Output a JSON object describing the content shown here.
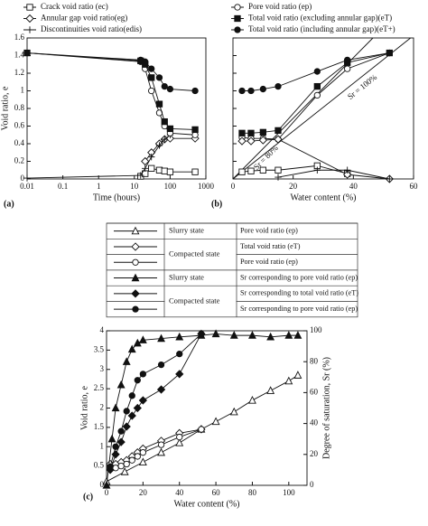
{
  "chart_data": [
    {
      "type": "line",
      "panel_label": "(a)",
      "xlabel": "Time (hours)",
      "ylabel": "Void ratio, e",
      "xlog": true,
      "xlim": [
        0.01,
        1000
      ],
      "xticks": [
        0.01,
        0.1,
        1,
        10,
        100,
        1000
      ],
      "ylim": [
        0,
        1.6
      ],
      "yticks": [
        0,
        0.2,
        0.4,
        0.6,
        0.8,
        1,
        1.2,
        1.4,
        1.6
      ],
      "series": [
        {
          "name": "Crack void ratio (ec)",
          "marker": "square-open",
          "color": "#111",
          "x": [
            15,
            20,
            30,
            50,
            70,
            100,
            500
          ],
          "values": [
            0.03,
            0.06,
            0.12,
            0.1,
            0.09,
            0.08,
            0.08
          ]
        },
        {
          "name": "Annular gap void ratio(eg)",
          "marker": "diamond-open",
          "color": "#111",
          "x": [
            20,
            30,
            50,
            70,
            100,
            500
          ],
          "values": [
            0.2,
            0.3,
            0.4,
            0.45,
            0.46,
            0.46
          ]
        },
        {
          "name": "Discontinuities void ratio(edis)",
          "marker": "plus",
          "color": "#111",
          "x": [
            0.01,
            15,
            20,
            30,
            50,
            70,
            100
          ],
          "values": [
            0.01,
            0.04,
            0.12,
            0.25,
            0.38,
            0.45,
            0.5
          ]
        },
        {
          "marker": "circle-open",
          "color": "#111",
          "x": [
            0.01,
            15,
            20,
            30,
            50,
            70,
            100,
            500
          ],
          "values": [
            1.43,
            1.33,
            1.25,
            1.0,
            0.75,
            0.6,
            0.52,
            0.5
          ]
        },
        {
          "marker": "square-filled",
          "color": "#111",
          "x": [
            0.01,
            15,
            20,
            30,
            50,
            70,
            100,
            500
          ],
          "values": [
            1.43,
            1.34,
            1.3,
            1.15,
            0.85,
            0.65,
            0.57,
            0.56
          ]
        },
        {
          "marker": "circle-filled",
          "color": "#111",
          "x": [
            0.01,
            15,
            20,
            30,
            50,
            70,
            100,
            500
          ],
          "values": [
            1.43,
            1.35,
            1.33,
            1.25,
            1.15,
            1.05,
            1.02,
            1.0
          ]
        }
      ]
    },
    {
      "type": "line",
      "panel_label": "(b)",
      "xlabel": "Water content (%)",
      "xlim": [
        0,
        60
      ],
      "xticks": [
        0,
        20,
        40,
        60
      ],
      "ylim": [
        0,
        1.6
      ],
      "yticks": [
        0,
        0.2,
        0.4,
        0.6,
        0.8,
        1,
        1.2,
        1.4,
        1.6
      ],
      "reference_lines": [
        {
          "name": "Sr = 100%",
          "x": [
            0,
            59
          ],
          "values": [
            0,
            1.6
          ]
        },
        {
          "name": "Sr = 80%",
          "x": [
            0,
            46.5
          ],
          "values": [
            0,
            1.6
          ]
        }
      ],
      "series": [
        {
          "name": "Pore void ratio (ep)",
          "marker": "circle-open",
          "color": "#111",
          "x": [
            3,
            6,
            10,
            15,
            28,
            38,
            52
          ],
          "values": [
            0.47,
            0.46,
            0.46,
            0.45,
            0.95,
            1.25,
            1.43
          ]
        },
        {
          "name": "Total void ratio (excluding annular gap)(eT)",
          "marker": "square-filled",
          "color": "#111",
          "x": [
            3,
            6,
            10,
            15,
            28,
            38,
            52
          ],
          "values": [
            0.52,
            0.52,
            0.53,
            0.55,
            1.05,
            1.32,
            1.43
          ]
        },
        {
          "name": "Total void ratio (including annular gap)(eT+)",
          "marker": "circle-filled",
          "color": "#111",
          "x": [
            3,
            6,
            10,
            15,
            28,
            38,
            52
          ],
          "values": [
            1.0,
            1.0,
            1.02,
            1.05,
            1.22,
            1.35,
            1.43
          ]
        },
        {
          "marker": "square-open",
          "color": "#111",
          "x": [
            3,
            6,
            10,
            15,
            28,
            38
          ],
          "values": [
            0.08,
            0.09,
            0.1,
            0.1,
            0.15,
            0.06
          ]
        },
        {
          "marker": "diamond-open",
          "color": "#111",
          "x": [
            3,
            6,
            10,
            15,
            38,
            52
          ],
          "values": [
            0.43,
            0.43,
            0.44,
            0.45,
            0.05,
            0
          ]
        },
        {
          "marker": "plus",
          "color": "#111",
          "x": [
            15,
            28,
            38,
            52
          ],
          "values": [
            0.02,
            0.1,
            0.1,
            0
          ]
        }
      ]
    },
    {
      "type": "line",
      "panel_label": "(c)",
      "xlabel": "Water content (%)",
      "ylabel": "Void ratio, e",
      "y2label": "Degree of saturation, Sr (%)",
      "xlim": [
        0,
        110
      ],
      "xticks": [
        0,
        20,
        40,
        60,
        80,
        100
      ],
      "ylim": [
        0,
        4
      ],
      "yticks": [
        0,
        0.5,
        1,
        1.5,
        2,
        2.5,
        3,
        3.5,
        4
      ],
      "y2lim": [
        0,
        100
      ],
      "y2ticks": [
        0,
        20,
        40,
        60,
        80,
        100
      ],
      "legend_groups": [
        {
          "label": "Slurry state",
          "series": [
            0
          ]
        },
        {
          "label": "Compacted state",
          "series": [
            1,
            2
          ]
        },
        {
          "label": "Slurry state",
          "series": [
            3
          ]
        },
        {
          "label": "Compacted state",
          "series": [
            4,
            5
          ]
        }
      ],
      "series": [
        {
          "name": "Pore void ratio (ep)",
          "marker": "triangle-open",
          "color": "#111",
          "x": [
            0,
            10,
            20,
            30,
            40,
            52,
            60,
            70,
            80,
            90,
            100,
            105
          ],
          "values": [
            0.1,
            0.35,
            0.6,
            0.85,
            1.1,
            1.45,
            1.65,
            1.9,
            2.2,
            2.45,
            2.7,
            2.85
          ]
        },
        {
          "name": "Total void ratio (eT)",
          "marker": "diamond-open",
          "color": "#111",
          "x": [
            2,
            5,
            8,
            11,
            14,
            17,
            20,
            30,
            40,
            52
          ],
          "values": [
            0.55,
            0.55,
            0.6,
            0.65,
            0.75,
            0.85,
            0.95,
            1.15,
            1.35,
            1.45
          ]
        },
        {
          "name": "Pore void ratio (ep)",
          "marker": "circle-open",
          "color": "#111",
          "x": [
            2,
            5,
            8,
            11,
            14,
            17,
            20,
            30,
            40,
            52
          ],
          "values": [
            0.45,
            0.45,
            0.5,
            0.55,
            0.65,
            0.75,
            0.85,
            1.05,
            1.25,
            1.45
          ]
        },
        {
          "name": "Sr corresponding to pore void ratio (ep)",
          "axis": "y2",
          "marker": "triangle-filled",
          "color": "#111",
          "x": [
            0,
            3,
            5,
            8,
            11,
            14,
            17,
            20,
            30,
            40,
            52,
            60,
            70,
            80,
            90,
            100,
            105
          ],
          "values": [
            0,
            30,
            50,
            65,
            80,
            88,
            92,
            94,
            95,
            96,
            97,
            98,
            97,
            97,
            96,
            97,
            97
          ]
        },
        {
          "name": "Sr corresponding to total void ratio (eT)",
          "axis": "y2",
          "marker": "diamond-filled",
          "color": "#111",
          "x": [
            2,
            5,
            8,
            11,
            14,
            17,
            20,
            30,
            40,
            52
          ],
          "values": [
            10,
            20,
            28,
            38,
            45,
            50,
            55,
            62,
            72,
            98
          ]
        },
        {
          "name": "Sr corresponding to pore void ratio (ep)",
          "axis": "y2",
          "marker": "circle-filled",
          "color": "#111",
          "x": [
            2,
            5,
            8,
            11,
            14,
            17,
            20,
            30,
            40,
            52
          ],
          "values": [
            12,
            25,
            35,
            48,
            58,
            68,
            72,
            78,
            85,
            98
          ]
        }
      ]
    }
  ]
}
